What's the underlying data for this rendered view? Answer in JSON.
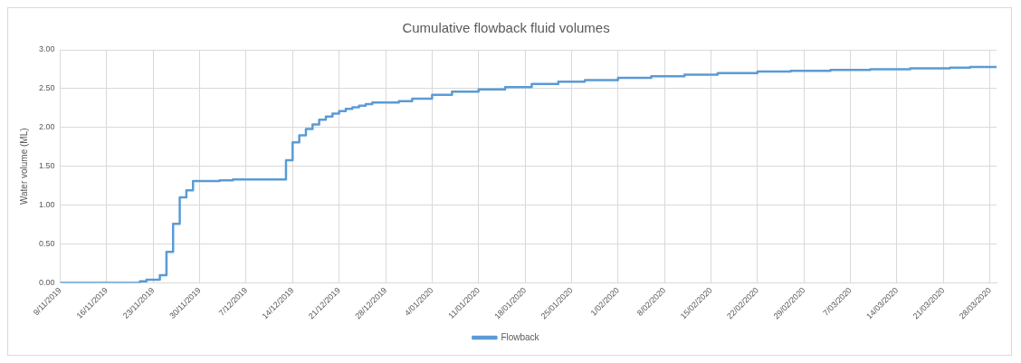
{
  "chart_data": {
    "type": "step",
    "title": "Cumulative flowback fluid volumes",
    "ylabel": "Water volume (ML)",
    "legend": "bottom",
    "grid": true,
    "marker": "none",
    "line_style": "solid",
    "x": [
      "2019-11-09",
      "2019-11-21",
      "2019-11-22",
      "2019-11-24",
      "2019-11-25",
      "2019-11-26",
      "2019-11-27",
      "2019-11-28",
      "2019-11-29",
      "2019-12-03",
      "2019-12-05",
      "2019-12-13",
      "2019-12-14",
      "2019-12-15",
      "2019-12-16",
      "2019-12-17",
      "2019-12-18",
      "2019-12-19",
      "2019-12-20",
      "2019-12-21",
      "2019-12-22",
      "2019-12-23",
      "2019-12-24",
      "2019-12-25",
      "2019-12-26",
      "2019-12-30",
      "2020-01-01",
      "2020-01-04",
      "2020-01-07",
      "2020-01-11",
      "2020-01-15",
      "2020-01-19",
      "2020-01-23",
      "2020-01-27",
      "2020-02-01",
      "2020-02-06",
      "2020-02-11",
      "2020-02-16",
      "2020-02-22",
      "2020-02-27",
      "2020-03-04",
      "2020-03-10",
      "2020-03-16",
      "2020-03-22",
      "2020-03-25",
      "2020-03-29"
    ],
    "series": [
      {
        "name": "Flowback",
        "color": "#5b9bd5",
        "values": [
          0,
          0.02,
          0.04,
          0.1,
          0.4,
          0.76,
          1.1,
          1.19,
          1.31,
          1.32,
          1.33,
          1.58,
          1.81,
          1.9,
          1.98,
          2.04,
          2.1,
          2.14,
          2.18,
          2.21,
          2.24,
          2.26,
          2.28,
          2.3,
          2.32,
          2.34,
          2.37,
          2.42,
          2.46,
          2.49,
          2.52,
          2.56,
          2.59,
          2.61,
          2.64,
          2.66,
          2.68,
          2.7,
          2.72,
          2.73,
          2.74,
          2.75,
          2.76,
          2.77,
          2.78,
          2.78
        ]
      }
    ],
    "xlim": [
      "2019-11-09",
      "2020-03-29"
    ],
    "xticks": [
      {
        "value": "2019-11-09",
        "label": "9/11/2019"
      },
      {
        "value": "2019-11-16",
        "label": "16/11/2019"
      },
      {
        "value": "2019-11-23",
        "label": "23/11/2019"
      },
      {
        "value": "2019-11-30",
        "label": "30/11/2019"
      },
      {
        "value": "2019-12-07",
        "label": "7/12/2019"
      },
      {
        "value": "2019-12-14",
        "label": "14/12/2019"
      },
      {
        "value": "2019-12-21",
        "label": "21/12/2019"
      },
      {
        "value": "2019-12-28",
        "label": "28/12/2019"
      },
      {
        "value": "2020-01-04",
        "label": "4/01/2020"
      },
      {
        "value": "2020-01-11",
        "label": "11/01/2020"
      },
      {
        "value": "2020-01-18",
        "label": "18/01/2020"
      },
      {
        "value": "2020-01-25",
        "label": "25/01/2020"
      },
      {
        "value": "2020-02-01",
        "label": "1/02/2020"
      },
      {
        "value": "2020-02-08",
        "label": "8/02/2020"
      },
      {
        "value": "2020-02-15",
        "label": "15/02/2020"
      },
      {
        "value": "2020-02-22",
        "label": "22/02/2020"
      },
      {
        "value": "2020-02-29",
        "label": "29/02/2020"
      },
      {
        "value": "2020-03-07",
        "label": "7/03/2020"
      },
      {
        "value": "2020-03-14",
        "label": "14/03/2020"
      },
      {
        "value": "2020-03-21",
        "label": "21/03/2020"
      },
      {
        "value": "2020-03-28",
        "label": "28/03/2020"
      }
    ],
    "ylim": [
      0,
      3
    ],
    "yticks": [
      {
        "value": 0,
        "label": "0.00"
      },
      {
        "value": 0.5,
        "label": "0.50"
      },
      {
        "value": 1,
        "label": "1.00"
      },
      {
        "value": 1.5,
        "label": "1.50"
      },
      {
        "value": 2,
        "label": "2.00"
      },
      {
        "value": 2.5,
        "label": "2.50"
      },
      {
        "value": 3,
        "label": "3.00"
      }
    ]
  }
}
